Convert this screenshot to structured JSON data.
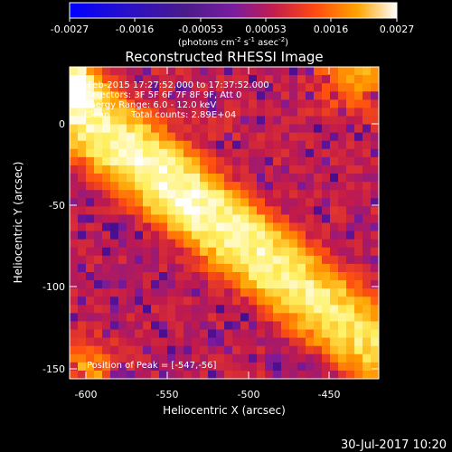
{
  "colorbar": {
    "tick_labels": [
      "-0.0027",
      "-0.0016",
      "-0.00053",
      "0.00053",
      "0.0016",
      "0.0027"
    ],
    "units_prefix": "(photons cm",
    "units_exp1": "-2",
    "units_mid": " s",
    "units_exp2": "-1",
    "units_mid2": " asec",
    "units_exp3": "-2",
    "units_suffix": ")"
  },
  "title": "Reconstructed RHESSI Image",
  "annotations": {
    "time_range": "4-Feb-2015 17:27:52.000 to 17:37:52.000",
    "detectors": "Detectors: 3F 5F 6F 7F 8F 9F, Att 0",
    "energy": "Energy Range: 6.0 - 12.0 keV",
    "method": "Clean",
    "counts": "Total counts: 2.89E+04",
    "peak": "Position of Peak = [-547,-56]"
  },
  "axes": {
    "xlabel": "Heliocentric X (arcsec)",
    "ylabel": "Heliocentric Y (arcsec)",
    "x_ticks": [
      "-600",
      "-550",
      "-500",
      "-450"
    ],
    "y_ticks": [
      "0",
      "-50",
      "-100",
      "-150"
    ]
  },
  "footer_date": "30-Jul-2017 10:20",
  "chart_data": {
    "type": "heatmap",
    "title": "Reconstructed RHESSI Image",
    "xlabel": "Heliocentric X (arcsec)",
    "ylabel": "Heliocentric Y (arcsec)",
    "xlim": [
      -612,
      -418
    ],
    "ylim": [
      -158,
      25
    ],
    "x_ticks": [
      -600,
      -550,
      -500,
      -450
    ],
    "y_ticks": [
      0,
      -50,
      -100,
      -150
    ],
    "colorbar_range": [
      -0.0027,
      0.0027
    ],
    "colorbar_ticks": [
      -0.0027,
      -0.0016,
      -0.00053,
      0.00053,
      0.0016,
      0.0027
    ],
    "peak_position": [
      -547,
      -56
    ],
    "colormap": [
      "#0000ff",
      "#3b0a8c",
      "#7a1a9a",
      "#c21a4a",
      "#ff5010",
      "#ffa000",
      "#fff060",
      "#ffffff"
    ]
  }
}
